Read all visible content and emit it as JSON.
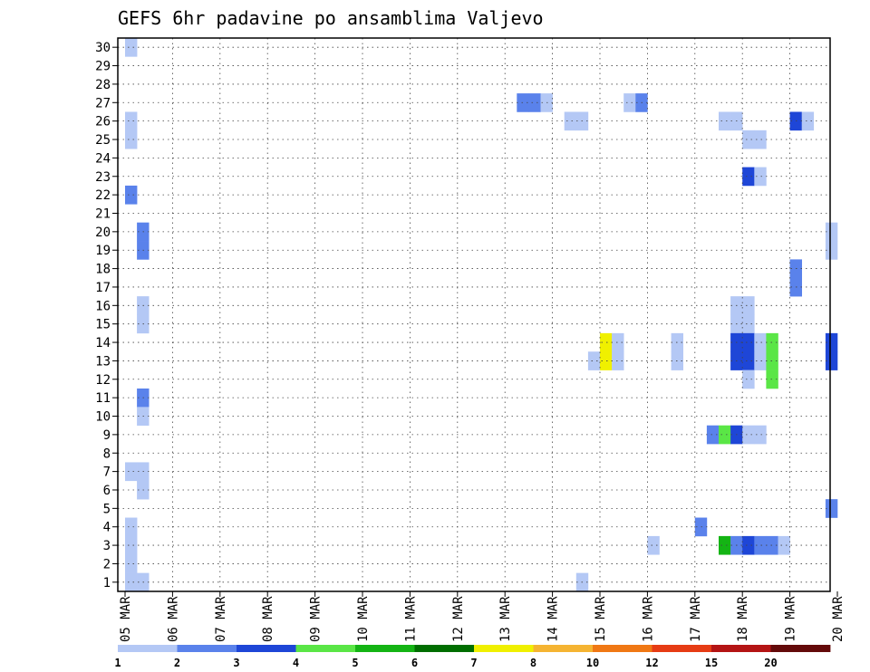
{
  "chart_data": {
    "type": "heatmap",
    "title": "GEFS 6hr padavine po ansamblima Valjevo",
    "xlabel": "",
    "ylabel": "",
    "x_tick_labels": [
      "05 MAR",
      "06 MAR",
      "07 MAR",
      "08 MAR",
      "09 MAR",
      "10 MAR",
      "11 MAR",
      "12 MAR",
      "13 MAR",
      "14 MAR",
      "15 MAR",
      "16 MAR",
      "17 MAR",
      "18 MAR",
      "19 MAR",
      "20 MAR"
    ],
    "y_tick_labels": [
      "1",
      "2",
      "3",
      "4",
      "5",
      "6",
      "7",
      "8",
      "9",
      "10",
      "11",
      "12",
      "13",
      "14",
      "15",
      "16",
      "17",
      "18",
      "19",
      "20",
      "21",
      "22",
      "23",
      "24",
      "25",
      "26",
      "27",
      "28",
      "29",
      "30"
    ],
    "x_unit": "6-hour step index from 05 MAR 00Z (4 steps per day)",
    "ylim": [
      0.5,
      30.5
    ],
    "xlim": [
      0,
      60
    ],
    "grid": "dotted",
    "colorbar": {
      "labels": [
        "1",
        "2",
        "3",
        "4",
        "5",
        "6",
        "7",
        "8",
        "10",
        "12",
        "15",
        "20"
      ],
      "colors": [
        "#b4c8f5",
        "#5a82eb",
        "#1e46d7",
        "#5ae646",
        "#14b414",
        "#006e00",
        "#f0f000",
        "#f5b432",
        "#f07814",
        "#e63c14",
        "#b41414",
        "#640a0a"
      ]
    },
    "cells": [
      {
        "m": 30,
        "s": 0,
        "c": 1
      },
      {
        "m": 27,
        "s": 33,
        "c": 2
      },
      {
        "m": 27,
        "s": 34,
        "c": 2
      },
      {
        "m": 27,
        "s": 35,
        "c": 1
      },
      {
        "m": 27,
        "s": 42,
        "c": 1
      },
      {
        "m": 27,
        "s": 43,
        "c": 2
      },
      {
        "m": 26,
        "s": 0,
        "c": 1
      },
      {
        "m": 26,
        "s": 37,
        "c": 1
      },
      {
        "m": 26,
        "s": 38,
        "c": 1
      },
      {
        "m": 26,
        "s": 50,
        "c": 1
      },
      {
        "m": 26,
        "s": 51,
        "c": 1
      },
      {
        "m": 26,
        "s": 56,
        "c": 3
      },
      {
        "m": 26,
        "s": 57,
        "c": 1
      },
      {
        "m": 25,
        "s": 0,
        "c": 1
      },
      {
        "m": 25,
        "s": 52,
        "c": 1
      },
      {
        "m": 25,
        "s": 53,
        "c": 1
      },
      {
        "m": 23,
        "s": 52,
        "c": 3
      },
      {
        "m": 23,
        "s": 53,
        "c": 1
      },
      {
        "m": 22,
        "s": 0,
        "c": 2
      },
      {
        "m": 20,
        "s": 1,
        "c": 2
      },
      {
        "m": 20,
        "s": 59,
        "c": 1
      },
      {
        "m": 19,
        "s": 1,
        "c": 2
      },
      {
        "m": 19,
        "s": 59,
        "c": 1
      },
      {
        "m": 18,
        "s": 56,
        "c": 2
      },
      {
        "m": 17,
        "s": 56,
        "c": 2
      },
      {
        "m": 16,
        "s": 1,
        "c": 1
      },
      {
        "m": 16,
        "s": 51,
        "c": 1
      },
      {
        "m": 16,
        "s": 52,
        "c": 1
      },
      {
        "m": 15,
        "s": 1,
        "c": 1
      },
      {
        "m": 15,
        "s": 51,
        "c": 1
      },
      {
        "m": 15,
        "s": 52,
        "c": 1
      },
      {
        "m": 14,
        "s": 40,
        "c": 7
      },
      {
        "m": 14,
        "s": 41,
        "c": 1
      },
      {
        "m": 14,
        "s": 46,
        "c": 1
      },
      {
        "m": 14,
        "s": 51,
        "c": 3
      },
      {
        "m": 14,
        "s": 52,
        "c": 3
      },
      {
        "m": 14,
        "s": 53,
        "c": 1
      },
      {
        "m": 14,
        "s": 54,
        "c": 4
      },
      {
        "m": 14,
        "s": 59,
        "c": 3
      },
      {
        "m": 13,
        "s": 39,
        "c": 1
      },
      {
        "m": 13,
        "s": 40,
        "c": 7
      },
      {
        "m": 13,
        "s": 41,
        "c": 1
      },
      {
        "m": 13,
        "s": 46,
        "c": 1
      },
      {
        "m": 13,
        "s": 51,
        "c": 3
      },
      {
        "m": 13,
        "s": 52,
        "c": 3
      },
      {
        "m": 13,
        "s": 53,
        "c": 1
      },
      {
        "m": 13,
        "s": 54,
        "c": 4
      },
      {
        "m": 13,
        "s": 59,
        "c": 3
      },
      {
        "m": 12,
        "s": 52,
        "c": 1
      },
      {
        "m": 12,
        "s": 54,
        "c": 4
      },
      {
        "m": 11,
        "s": 1,
        "c": 2
      },
      {
        "m": 10,
        "s": 1,
        "c": 1
      },
      {
        "m": 9,
        "s": 49,
        "c": 2
      },
      {
        "m": 9,
        "s": 50,
        "c": 4
      },
      {
        "m": 9,
        "s": 51,
        "c": 3
      },
      {
        "m": 9,
        "s": 52,
        "c": 1
      },
      {
        "m": 9,
        "s": 53,
        "c": 1
      },
      {
        "m": 7,
        "s": 0,
        "c": 1
      },
      {
        "m": 7,
        "s": 1,
        "c": 1
      },
      {
        "m": 6,
        "s": 1,
        "c": 1
      },
      {
        "m": 5,
        "s": 59,
        "c": 2
      },
      {
        "m": 4,
        "s": 0,
        "c": 1
      },
      {
        "m": 4,
        "s": 48,
        "c": 2
      },
      {
        "m": 3,
        "s": 0,
        "c": 1
      },
      {
        "m": 3,
        "s": 44,
        "c": 1
      },
      {
        "m": 3,
        "s": 50,
        "c": 5
      },
      {
        "m": 3,
        "s": 51,
        "c": 2
      },
      {
        "m": 3,
        "s": 52,
        "c": 3
      },
      {
        "m": 3,
        "s": 53,
        "c": 2
      },
      {
        "m": 3,
        "s": 54,
        "c": 2
      },
      {
        "m": 3,
        "s": 55,
        "c": 1
      },
      {
        "m": 2,
        "s": 0,
        "c": 1
      },
      {
        "m": 1,
        "s": 0,
        "c": 1
      },
      {
        "m": 1,
        "s": 1,
        "c": 1
      },
      {
        "m": 1,
        "s": 38,
        "c": 1
      }
    ]
  }
}
